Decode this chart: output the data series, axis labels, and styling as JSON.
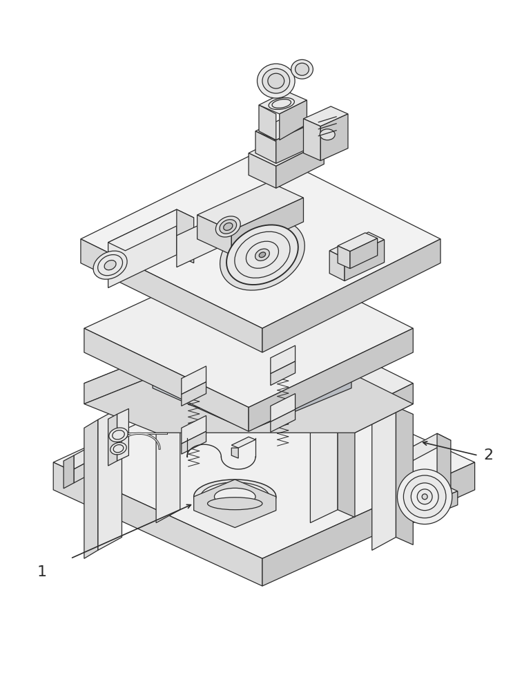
{
  "background_color": "#ffffff",
  "figsize": [
    7.43,
    10.0
  ],
  "dpi": 100,
  "label_1": "1",
  "label_2": "2",
  "line_color": "#2a2a2a",
  "face_light": "#f5f5f5",
  "face_mid": "#e8e8e8",
  "face_dark": "#d8d8d8",
  "face_darker": "#c8c8c8",
  "face_shadow": "#b8b8b8",
  "label_fontsize": 16,
  "lw": 0.9
}
